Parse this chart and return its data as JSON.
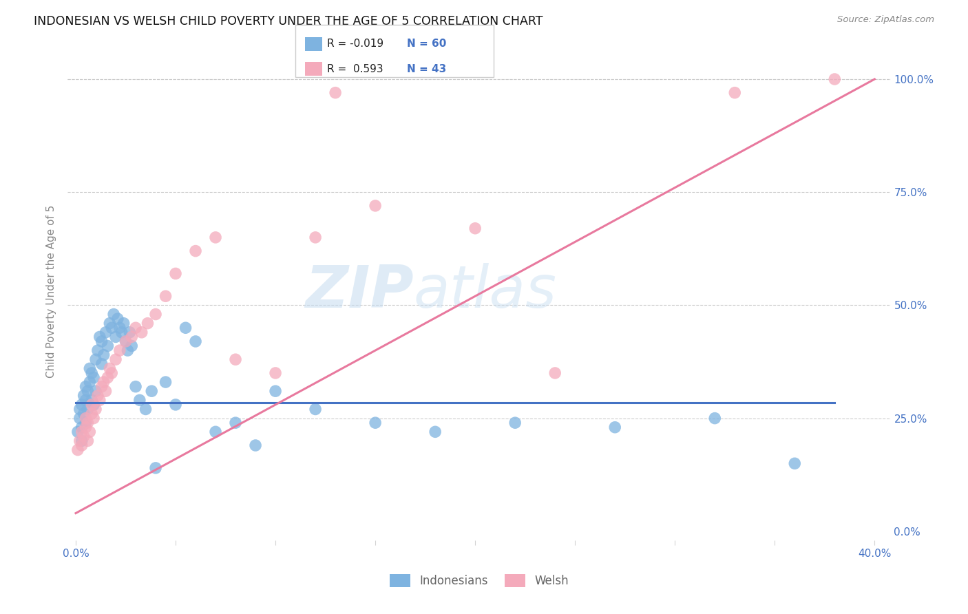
{
  "title": "INDONESIAN VS WELSH CHILD POVERTY UNDER THE AGE OF 5 CORRELATION CHART",
  "source": "Source: ZipAtlas.com",
  "ylabel": "Child Poverty Under the Age of 5",
  "indonesian_color": "#7EB3E0",
  "welsh_color": "#F4AABB",
  "indonesian_line_color": "#4472C4",
  "welsh_line_color": "#E8799E",
  "watermark_color": "#D8EAF7",
  "ytick_vals": [
    0.0,
    0.25,
    0.5,
    0.75,
    1.0
  ],
  "ytick_labels_right": [
    "0.0%",
    "25.0%",
    "50.0%",
    "75.0%",
    "100.0%"
  ],
  "xtick_vals": [
    0.0,
    0.05,
    0.1,
    0.15,
    0.2,
    0.25,
    0.3,
    0.35,
    0.4
  ],
  "xtick_labels": [
    "0.0%",
    "",
    "",
    "",
    "",
    "",
    "",
    "",
    "40.0%"
  ],
  "indonesian_line_x": [
    0.0,
    0.38
  ],
  "indonesian_line_y": [
    0.285,
    0.285
  ],
  "welsh_line_x": [
    0.0,
    0.4
  ],
  "welsh_line_y": [
    0.04,
    1.0
  ],
  "indo_x": [
    0.001,
    0.002,
    0.002,
    0.003,
    0.003,
    0.003,
    0.004,
    0.004,
    0.005,
    0.005,
    0.005,
    0.006,
    0.006,
    0.007,
    0.007,
    0.008,
    0.008,
    0.009,
    0.009,
    0.01,
    0.01,
    0.011,
    0.012,
    0.013,
    0.013,
    0.014,
    0.015,
    0.016,
    0.017,
    0.018,
    0.019,
    0.02,
    0.021,
    0.022,
    0.023,
    0.024,
    0.025,
    0.026,
    0.027,
    0.028,
    0.03,
    0.032,
    0.035,
    0.038,
    0.04,
    0.045,
    0.05,
    0.055,
    0.06,
    0.07,
    0.08,
    0.09,
    0.1,
    0.12,
    0.15,
    0.18,
    0.22,
    0.27,
    0.32,
    0.36
  ],
  "indo_y": [
    0.22,
    0.25,
    0.27,
    0.2,
    0.23,
    0.28,
    0.26,
    0.3,
    0.24,
    0.29,
    0.32,
    0.27,
    0.31,
    0.33,
    0.36,
    0.29,
    0.35,
    0.28,
    0.34,
    0.31,
    0.38,
    0.4,
    0.43,
    0.37,
    0.42,
    0.39,
    0.44,
    0.41,
    0.46,
    0.45,
    0.48,
    0.43,
    0.47,
    0.45,
    0.44,
    0.46,
    0.42,
    0.4,
    0.44,
    0.41,
    0.32,
    0.29,
    0.27,
    0.31,
    0.14,
    0.33,
    0.28,
    0.45,
    0.42,
    0.22,
    0.24,
    0.19,
    0.31,
    0.27,
    0.24,
    0.22,
    0.24,
    0.23,
    0.25,
    0.15
  ],
  "welsh_x": [
    0.001,
    0.002,
    0.003,
    0.003,
    0.004,
    0.005,
    0.005,
    0.006,
    0.006,
    0.007,
    0.008,
    0.008,
    0.009,
    0.01,
    0.011,
    0.012,
    0.013,
    0.014,
    0.015,
    0.016,
    0.017,
    0.018,
    0.02,
    0.022,
    0.025,
    0.028,
    0.03,
    0.033,
    0.036,
    0.04,
    0.045,
    0.05,
    0.06,
    0.07,
    0.08,
    0.1,
    0.12,
    0.15,
    0.2,
    0.24,
    0.13,
    0.33,
    0.38
  ],
  "welsh_y": [
    0.18,
    0.2,
    0.19,
    0.22,
    0.21,
    0.23,
    0.25,
    0.2,
    0.24,
    0.22,
    0.26,
    0.28,
    0.25,
    0.27,
    0.3,
    0.29,
    0.32,
    0.33,
    0.31,
    0.34,
    0.36,
    0.35,
    0.38,
    0.4,
    0.42,
    0.43,
    0.45,
    0.44,
    0.46,
    0.48,
    0.52,
    0.57,
    0.62,
    0.65,
    0.38,
    0.35,
    0.65,
    0.72,
    0.67,
    0.35,
    0.97,
    0.97,
    1.0
  ]
}
